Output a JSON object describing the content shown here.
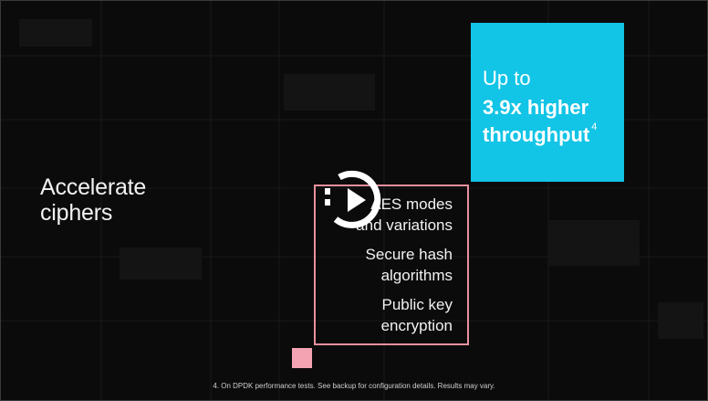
{
  "slide": {
    "heading_line1": "Accelerate",
    "heading_line2": "ciphers",
    "highlight": {
      "line1": "Up to",
      "line2": "3.9x higher",
      "line3": "throughput",
      "footnote_ref": "4",
      "color": "#12c4e6"
    },
    "features": [
      {
        "line1": "AES modes",
        "line2": "and variations"
      },
      {
        "line1": "Secure hash",
        "line2": "algorithms"
      },
      {
        "line1": "Public key",
        "line2": "encryption"
      }
    ],
    "accent_color": "#e8909f",
    "footnote": "4. On DPDK performance tests. See backup for configuration details. Results may vary."
  },
  "player": {
    "play_icon": "play-icon"
  }
}
